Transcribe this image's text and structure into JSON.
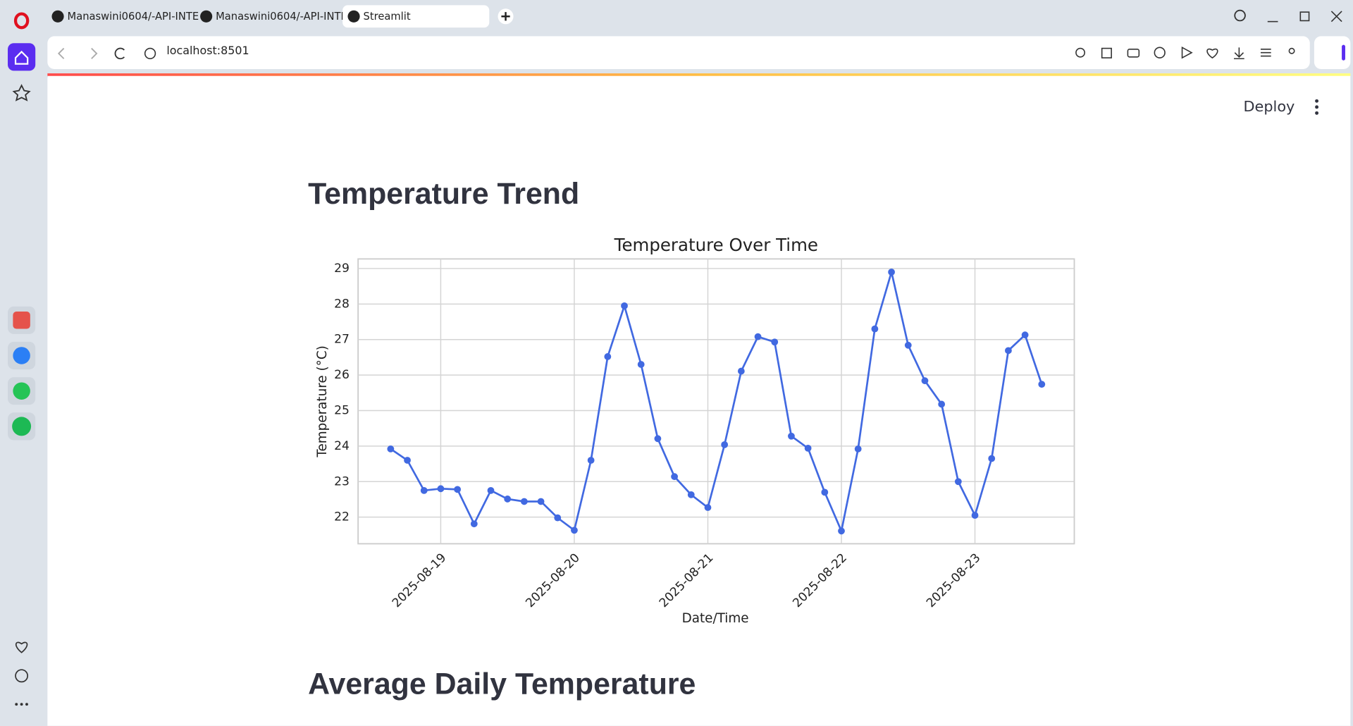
{
  "browser": {
    "tabs": [
      "Manaswini0604/-API-INTE",
      "Manaswini0604/-API-INTE",
      "Streamlit"
    ],
    "url": "localhost:8501"
  },
  "app": {
    "deploy_button": "Deploy",
    "headings": [
      "Temperature Trend",
      "Average Daily Temperature"
    ]
  },
  "chart_data": {
    "type": "line",
    "title": "Temperature Over Time",
    "x_label": "Date/Time",
    "y_label": "Temperature (°C)",
    "x": [
      "2025-08-18T15:00",
      "2025-08-18T18:00",
      "2025-08-18T21:00",
      "2025-08-19T00:00",
      "2025-08-19T03:00",
      "2025-08-19T06:00",
      "2025-08-19T09:00",
      "2025-08-19T12:00",
      "2025-08-19T15:00",
      "2025-08-19T18:00",
      "2025-08-19T21:00",
      "2025-08-20T00:00",
      "2025-08-20T03:00",
      "2025-08-20T06:00",
      "2025-08-20T09:00",
      "2025-08-20T12:00",
      "2025-08-20T15:00",
      "2025-08-20T18:00",
      "2025-08-20T21:00",
      "2025-08-21T00:00",
      "2025-08-21T03:00",
      "2025-08-21T06:00",
      "2025-08-21T09:00",
      "2025-08-21T12:00",
      "2025-08-21T15:00",
      "2025-08-21T18:00",
      "2025-08-21T21:00",
      "2025-08-22T00:00",
      "2025-08-22T03:00",
      "2025-08-22T06:00",
      "2025-08-22T09:00",
      "2025-08-22T12:00",
      "2025-08-22T15:00",
      "2025-08-22T18:00",
      "2025-08-22T21:00",
      "2025-08-23T00:00",
      "2025-08-23T03:00",
      "2025-08-23T06:00",
      "2025-08-23T09:00",
      "2025-08-23T12:00"
    ],
    "values": [
      23.92,
      23.6,
      22.75,
      22.8,
      22.78,
      21.81,
      22.75,
      22.51,
      22.44,
      22.44,
      21.98,
      21.63,
      23.6,
      26.52,
      27.95,
      26.3,
      24.21,
      23.14,
      22.63,
      22.27,
      24.04,
      26.11,
      27.08,
      26.93,
      24.28,
      23.94,
      22.7,
      21.61,
      23.92,
      27.3,
      28.9,
      26.84,
      25.84,
      25.18,
      23.0,
      22.05,
      23.65,
      26.69,
      27.13,
      25.74
    ],
    "color": "#4169e1",
    "marker": "o",
    "grid": true,
    "xlim": [
      "2025-08-18T09:09",
      "2025-08-23T17:51"
    ],
    "xticks": [
      "2025-08-19",
      "2025-08-20",
      "2025-08-21",
      "2025-08-22",
      "2025-08-23"
    ],
    "ylim": [
      21.25,
      29.27
    ],
    "yticks": [
      22,
      23,
      24,
      25,
      26,
      27,
      28,
      29
    ]
  }
}
